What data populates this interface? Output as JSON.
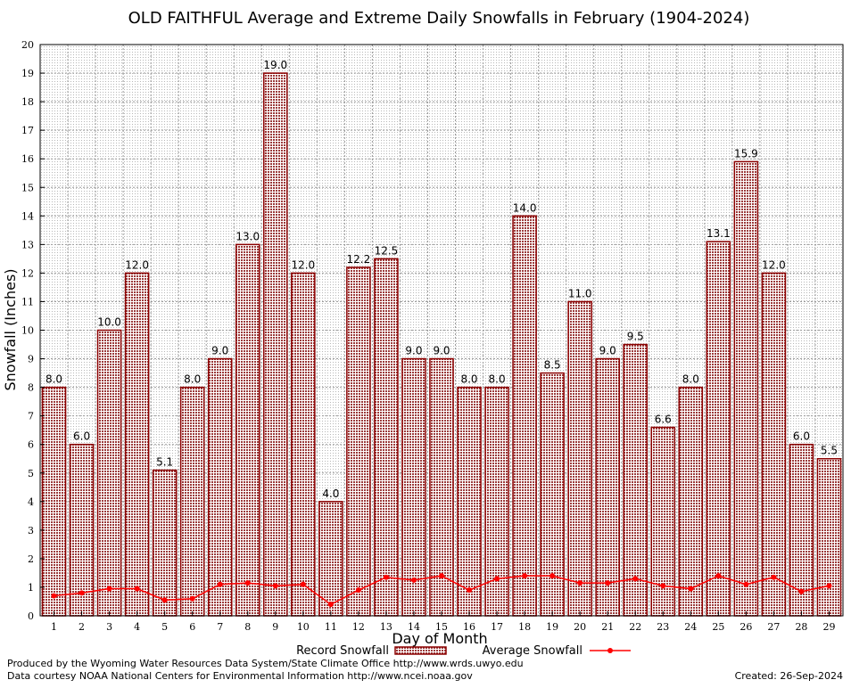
{
  "chart_data": {
    "type": "bar",
    "title": "OLD FAITHFUL Average and Extreme Daily Snowfalls in February (1904-2024)",
    "xlabel": "Day of Month",
    "ylabel": "Snowfall (Inches)",
    "ylim": [
      0,
      20
    ],
    "yticks": [
      0,
      1,
      2,
      3,
      4,
      5,
      6,
      7,
      8,
      9,
      10,
      11,
      12,
      13,
      14,
      15,
      16,
      17,
      18,
      19,
      20
    ],
    "grid": true,
    "legend_position": "bottom",
    "categories": [
      "1",
      "2",
      "3",
      "4",
      "5",
      "6",
      "7",
      "8",
      "9",
      "10",
      "11",
      "12",
      "13",
      "14",
      "15",
      "16",
      "17",
      "18",
      "19",
      "20",
      "21",
      "22",
      "23",
      "24",
      "25",
      "26",
      "27",
      "28",
      "29"
    ],
    "series": [
      {
        "name": "Record Snowfall",
        "type": "bar",
        "color": "#8b0000",
        "values": [
          8.0,
          6.0,
          10.0,
          12.0,
          5.1,
          8.0,
          9.0,
          13.0,
          19.0,
          12.0,
          4.0,
          12.2,
          12.5,
          9.0,
          9.0,
          8.0,
          8.0,
          14.0,
          8.5,
          11.0,
          9.0,
          9.5,
          6.6,
          8.0,
          13.1,
          15.9,
          12.0,
          6.0,
          5.5
        ],
        "labels": [
          "8.0",
          "6.0",
          "10.0",
          "12.0",
          "5.1",
          "8.0",
          "9.0",
          "13.0",
          "19.0",
          "12.0",
          "4.0",
          "12.2",
          "12.5",
          "9.0",
          "9.0",
          "8.0",
          "8.0",
          "14.0",
          "8.5",
          "11.0",
          "9.0",
          "9.5",
          "6.6",
          "8.0",
          "13.1",
          "15.9",
          "12.0",
          "6.0",
          "5.5"
        ]
      },
      {
        "name": "Average Snowfall",
        "type": "line",
        "color": "#ff0000",
        "values": [
          0.7,
          0.8,
          0.95,
          0.95,
          0.55,
          0.6,
          1.1,
          1.15,
          1.05,
          1.1,
          0.4,
          0.9,
          1.35,
          1.25,
          1.4,
          0.9,
          1.3,
          1.4,
          1.4,
          1.15,
          1.15,
          1.3,
          1.05,
          0.95,
          1.4,
          1.1,
          1.35,
          0.85,
          1.05
        ]
      }
    ]
  },
  "footer": {
    "producer": "Produced by the Wyoming Water Resources Data System/State Climate Office http://www.wrds.uwyo.edu",
    "courtesy": "Data courtesy NOAA National Centers for Environmental Information http://www.ncei.noaa.gov",
    "created": "Created:  26-Sep-2024"
  }
}
